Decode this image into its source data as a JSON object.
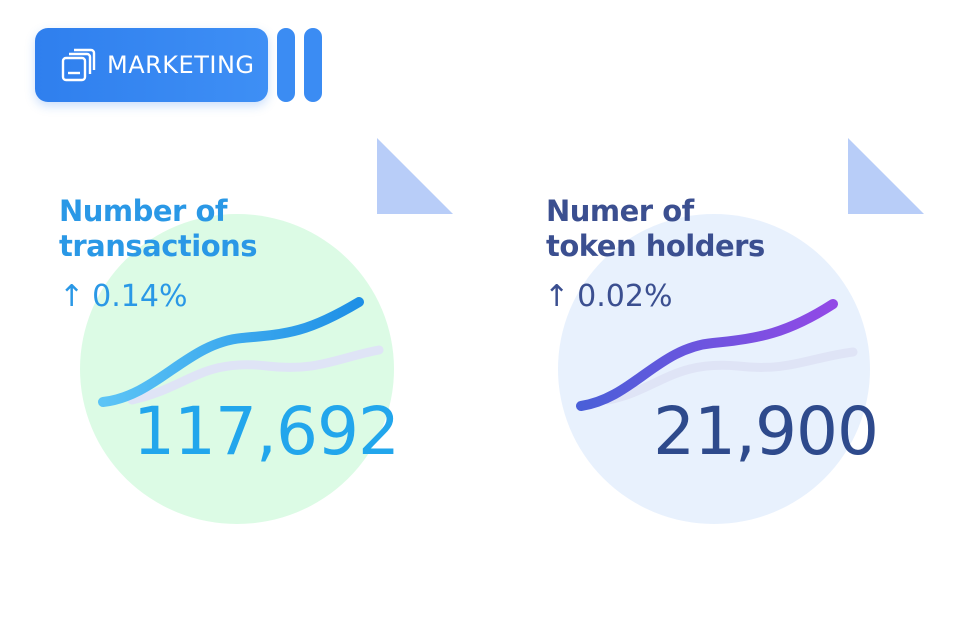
{
  "header": {
    "tag_label": "MARKETING",
    "tag_icon": "stacked-cards-icon",
    "accent_color": "#2f7fee"
  },
  "cards": [
    {
      "title_line1": "Number of",
      "title_line2": "transactions",
      "arrow": "↑",
      "change": "0.14%",
      "value": "117,692",
      "color": "#2a98e6",
      "blob_color": "#dcfbe5"
    },
    {
      "title_line1": "Numer of",
      "title_line2": "token holders",
      "arrow": "↑",
      "change": "0.02%",
      "value": "21,900",
      "color": "#3b4f90",
      "blob_color": "#e8f1fd"
    }
  ]
}
